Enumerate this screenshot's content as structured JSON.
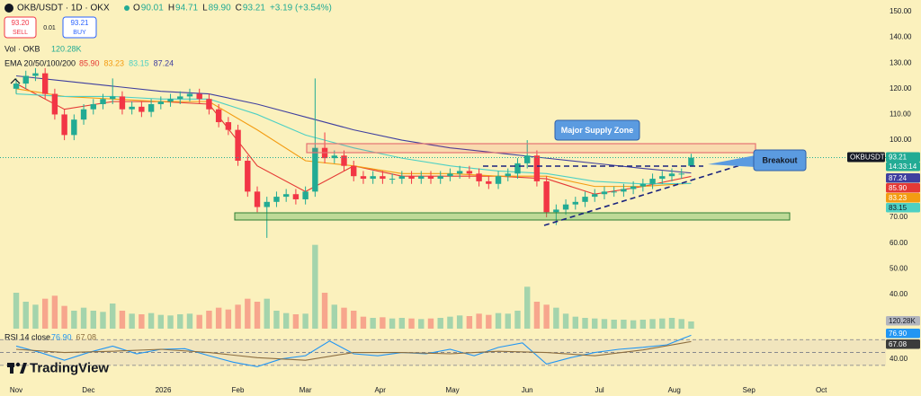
{
  "header": {
    "title": "OKB/USDT · 1D · OKX",
    "ohlc": [
      {
        "k": "O",
        "v": "90.01"
      },
      {
        "k": "H",
        "v": "94.71"
      },
      {
        "k": "L",
        "v": "89.90"
      },
      {
        "k": "C",
        "v": "93.21"
      }
    ],
    "change": "+3.19 (+3.54%)"
  },
  "trade": {
    "sell_price": "93.20",
    "sell_label": "SELL",
    "spread": "0.01",
    "buy_price": "93.21",
    "buy_label": "BUY"
  },
  "logo": "TradingView",
  "chart_data": {
    "type": "candlestick",
    "x": [
      0,
      4,
      8,
      12,
      16,
      20,
      24,
      28,
      32,
      36,
      40,
      44,
      48,
      52,
      56,
      60,
      64,
      68,
      72,
      76,
      80,
      84,
      88,
      92,
      96,
      100,
      104,
      108,
      112,
      116,
      120,
      124,
      128,
      132,
      136,
      140,
      144,
      148,
      152,
      156,
      160,
      164,
      168,
      172,
      176,
      180,
      184,
      188,
      192,
      196,
      200,
      204,
      208,
      212,
      216,
      220,
      224,
      228,
      232,
      236,
      240,
      244,
      248,
      252,
      256,
      260,
      264,
      268,
      272,
      276,
      280
    ],
    "open": [
      120,
      122,
      125,
      126,
      118,
      110,
      102,
      108,
      112,
      114,
      116,
      117,
      112,
      113,
      111,
      114,
      115,
      116,
      117,
      118,
      116,
      112,
      107,
      104,
      92,
      80,
      74,
      76,
      78,
      79,
      77,
      80,
      97,
      93,
      94,
      90,
      86,
      85,
      86,
      85,
      85,
      86,
      85,
      86,
      85,
      86,
      87,
      88,
      87,
      84,
      83,
      86,
      87,
      91,
      94,
      84,
      72,
      73,
      75,
      76,
      78,
      79,
      80,
      80,
      81,
      82,
      83,
      85,
      86,
      87,
      90.01
    ],
    "high": [
      124,
      127,
      128,
      128,
      120,
      112,
      110,
      114,
      116,
      118,
      124,
      119,
      115,
      115,
      116,
      117,
      118,
      119,
      120,
      120,
      118,
      114,
      109,
      106,
      94,
      82,
      78,
      80,
      81,
      81,
      82,
      124,
      103,
      96,
      96,
      92,
      88,
      88,
      88,
      87,
      88,
      88,
      88,
      88,
      88,
      89,
      90,
      90,
      89,
      86,
      88,
      89,
      93,
      100,
      96,
      86,
      75,
      77,
      78,
      80,
      81,
      82,
      82,
      83,
      84,
      85,
      87,
      88,
      89,
      89,
      94.71
    ],
    "low": [
      118,
      120,
      123,
      116,
      108,
      100,
      100,
      106,
      110,
      112,
      114,
      110,
      110,
      109,
      109,
      112,
      113,
      114,
      115,
      114,
      110,
      105,
      102,
      90,
      78,
      72,
      62,
      74,
      76,
      75,
      75,
      78,
      91,
      91,
      88,
      84,
      83,
      83,
      83,
      83,
      83,
      83,
      83,
      83,
      83,
      84,
      85,
      85,
      82,
      81,
      81,
      84,
      85,
      89,
      82,
      70,
      67,
      71,
      73,
      74,
      76,
      77,
      78,
      78,
      79,
      80,
      81,
      83,
      84,
      85,
      89.9
    ],
    "close": [
      122,
      125,
      126,
      118,
      110,
      102,
      108,
      112,
      114,
      116,
      117,
      112,
      113,
      111,
      114,
      115,
      116,
      117,
      118,
      116,
      112,
      107,
      104,
      92,
      80,
      74,
      76,
      78,
      79,
      77,
      80,
      97,
      93,
      94,
      90,
      86,
      85,
      86,
      85,
      85,
      86,
      85,
      86,
      85,
      86,
      87,
      88,
      87,
      84,
      83,
      86,
      87,
      91,
      94,
      84,
      72,
      73,
      75,
      76,
      78,
      79,
      80,
      80,
      81,
      82,
      83,
      85,
      86,
      87,
      87,
      93.21
    ],
    "colors": {
      "up": "#22ab94",
      "down": "#f23645"
    },
    "xlim": [
      -6.72,
      360.8
    ],
    "xticks": [
      {
        "value": 0,
        "label": "Nov"
      },
      {
        "value": 30,
        "label": "Dec"
      },
      {
        "value": 61,
        "label": "2026"
      },
      {
        "value": 92,
        "label": "Feb"
      },
      {
        "value": 120,
        "label": "Mar"
      },
      {
        "value": 151,
        "label": "Apr"
      },
      {
        "value": 181,
        "label": "May"
      },
      {
        "value": 212,
        "label": "Jun"
      },
      {
        "value": 242,
        "label": "Jul"
      },
      {
        "value": 273,
        "label": "Aug"
      },
      {
        "value": 304,
        "label": "Sep"
      },
      {
        "value": 334,
        "label": "Oct"
      }
    ],
    "ylim": [
      28.8,
      154.5
    ],
    "yticks": [
      {
        "value": 150,
        "label": "150.00"
      },
      {
        "value": 140,
        "label": "140.00"
      },
      {
        "value": 130,
        "label": "130.00"
      },
      {
        "value": 120,
        "label": "120.00"
      },
      {
        "value": 110,
        "label": "110.00"
      },
      {
        "value": 100,
        "label": "100.00"
      },
      {
        "value": 70,
        "label": "70.00"
      },
      {
        "value": 60,
        "label": "60.00"
      },
      {
        "value": 50,
        "label": "50.00"
      },
      {
        "value": 40,
        "label": "40.00"
      }
    ],
    "symbol": "OKBUSDT",
    "countdown": "14:33:14",
    "annotations": {
      "supply": "Major Supply Zone",
      "breakout": "Breakout"
    },
    "volume": {
      "name": "Vol · OKB",
      "last": "120.28K",
      "ylim": [
        0,
        1500
      ],
      "values": [
        600,
        450,
        400,
        500,
        550,
        380,
        300,
        350,
        300,
        280,
        420,
        300,
        250,
        240,
        260,
        230,
        220,
        240,
        250,
        230,
        300,
        350,
        320,
        400,
        500,
        450,
        500,
        300,
        260,
        240,
        250,
        1400,
        600,
        400,
        350,
        300,
        200,
        180,
        190,
        170,
        180,
        170,
        160,
        170,
        180,
        200,
        220,
        210,
        250,
        230,
        260,
        250,
        300,
        700,
        450,
        400,
        350,
        250,
        200,
        180,
        170,
        160,
        150,
        150,
        140,
        150,
        160,
        170,
        180,
        160,
        120.28
      ]
    },
    "ema": {
      "label": "EMA 20/50/100/200",
      "legend_values": [
        "85.90",
        "83.23",
        "83.15",
        "87.24"
      ],
      "series": [
        {
          "color": "#e53935",
          "x": [
            0,
            20,
            40,
            60,
            80,
            100,
            120,
            140,
            160,
            180,
            200,
            220,
            240,
            260,
            280
          ],
          "values": [
            122,
            112,
            115,
            115,
            114,
            90,
            80,
            90,
            86,
            86,
            86,
            85,
            79,
            82,
            85.9
          ]
        },
        {
          "color": "#f39c12",
          "x": [
            0,
            20,
            40,
            60,
            80,
            100,
            120,
            140,
            160,
            180,
            200,
            220,
            240,
            260,
            280
          ],
          "values": [
            120,
            117,
            116,
            115,
            115,
            104,
            92,
            90,
            87,
            87,
            86,
            86,
            82,
            82,
            83.23
          ]
        },
        {
          "color": "#4dd0c4",
          "x": [
            0,
            20,
            40,
            60,
            80,
            100,
            120,
            140,
            160,
            180,
            200,
            220,
            240,
            260,
            280
          ],
          "values": [
            118,
            117,
            117,
            116,
            116,
            110,
            102,
            97,
            93,
            90,
            88,
            87,
            84,
            83,
            83.15
          ]
        },
        {
          "color": "#3f3f9f",
          "x": [
            0,
            20,
            40,
            60,
            80,
            100,
            120,
            140,
            160,
            180,
            200,
            220,
            240,
            260,
            280
          ],
          "values": [
            125,
            123,
            121,
            119,
            118,
            114,
            109,
            104,
            100,
            97,
            95,
            93,
            91,
            89,
            87.24
          ]
        }
      ]
    },
    "rsi": {
      "label": "RSI 14 close",
      "legend_values": [
        "76.90",
        "67.08"
      ],
      "ylim": [
        20,
        90
      ],
      "yticks": [
        {
          "value": 40,
          "label": "40.00"
        }
      ],
      "bands": [
        30,
        50,
        70
      ],
      "series": [
        {
          "color": "#2196f3",
          "x": [
            0,
            10,
            20,
            30,
            40,
            50,
            60,
            70,
            80,
            90,
            100,
            110,
            120,
            130,
            140,
            150,
            160,
            170,
            180,
            190,
            200,
            210,
            220,
            230,
            240,
            250,
            260,
            270,
            280
          ],
          "values": [
            60,
            50,
            38,
            50,
            60,
            48,
            55,
            56,
            45,
            35,
            28,
            40,
            45,
            68,
            48,
            45,
            50,
            48,
            55,
            45,
            58,
            65,
            32,
            42,
            50,
            55,
            58,
            62,
            76.9
          ]
        },
        {
          "color": "#8d6e3f",
          "x": [
            0,
            20,
            40,
            60,
            80,
            100,
            120,
            140,
            160,
            180,
            200,
            220,
            240,
            260,
            280
          ],
          "values": [
            55,
            50,
            52,
            55,
            50,
            42,
            38,
            50,
            50,
            48,
            52,
            50,
            45,
            54,
            67.08
          ]
        }
      ]
    }
  }
}
